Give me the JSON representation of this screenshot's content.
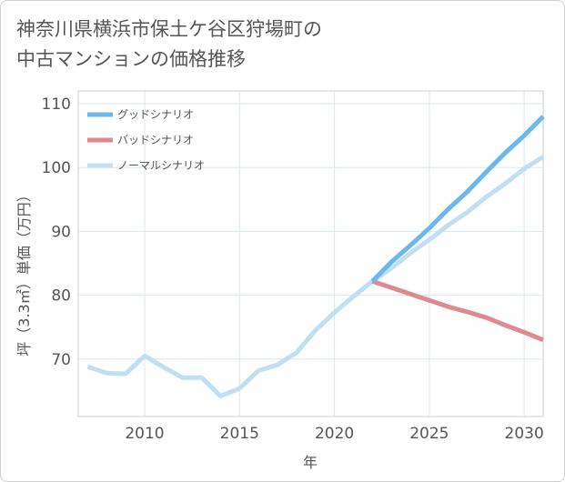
{
  "chart_data": {
    "type": "line",
    "title": "神奈川県横浜市保土ケ谷区狩場町の\n中古マンションの価格推移",
    "xlabel": "年",
    "ylabel": "坪（3.3㎡）単価（万円）",
    "xlim": [
      2006.5,
      2031
    ],
    "ylim": [
      61,
      112
    ],
    "x_ticks": [
      2010,
      2015,
      2020,
      2025,
      2030
    ],
    "y_ticks": [
      70,
      80,
      90,
      100,
      110
    ],
    "grid": true,
    "legend_position": "top-left",
    "series": [
      {
        "name": "グッドシナリオ",
        "color": "#6bb9ec",
        "x": [
          2022,
          2023,
          2024,
          2025,
          2026,
          2027,
          2028,
          2029,
          2030,
          2031
        ],
        "y": [
          82.2,
          85.2,
          87.8,
          90.5,
          93.5,
          96.2,
          99.3,
          102.3,
          105.0,
          108.0
        ]
      },
      {
        "name": "バッドシナリオ",
        "color": "#de8a94",
        "x": [
          2022,
          2023,
          2024,
          2025,
          2026,
          2027,
          2028,
          2029,
          2030,
          2031
        ],
        "y": [
          82.2,
          81.2,
          80.2,
          79.2,
          78.2,
          77.4,
          76.5,
          75.3,
          74.2,
          73.0
        ]
      },
      {
        "name": "ノーマルシナリオ",
        "color": "#c0dff0",
        "x": [
          2007,
          2008,
          2009,
          2010,
          2011,
          2012,
          2013,
          2014,
          2015,
          2016,
          2017,
          2018,
          2019,
          2020,
          2021,
          2022,
          2023,
          2024,
          2025,
          2026,
          2027,
          2028,
          2029,
          2030,
          2031
        ],
        "y": [
          68.8,
          67.8,
          67.7,
          70.5,
          68.7,
          67.1,
          67.1,
          64.2,
          65.4,
          68.2,
          69.1,
          71.0,
          74.5,
          77.3,
          79.8,
          82.2,
          84.2,
          86.6,
          88.7,
          91.0,
          93.0,
          95.4,
          97.5,
          99.8,
          101.7
        ]
      }
    ]
  }
}
